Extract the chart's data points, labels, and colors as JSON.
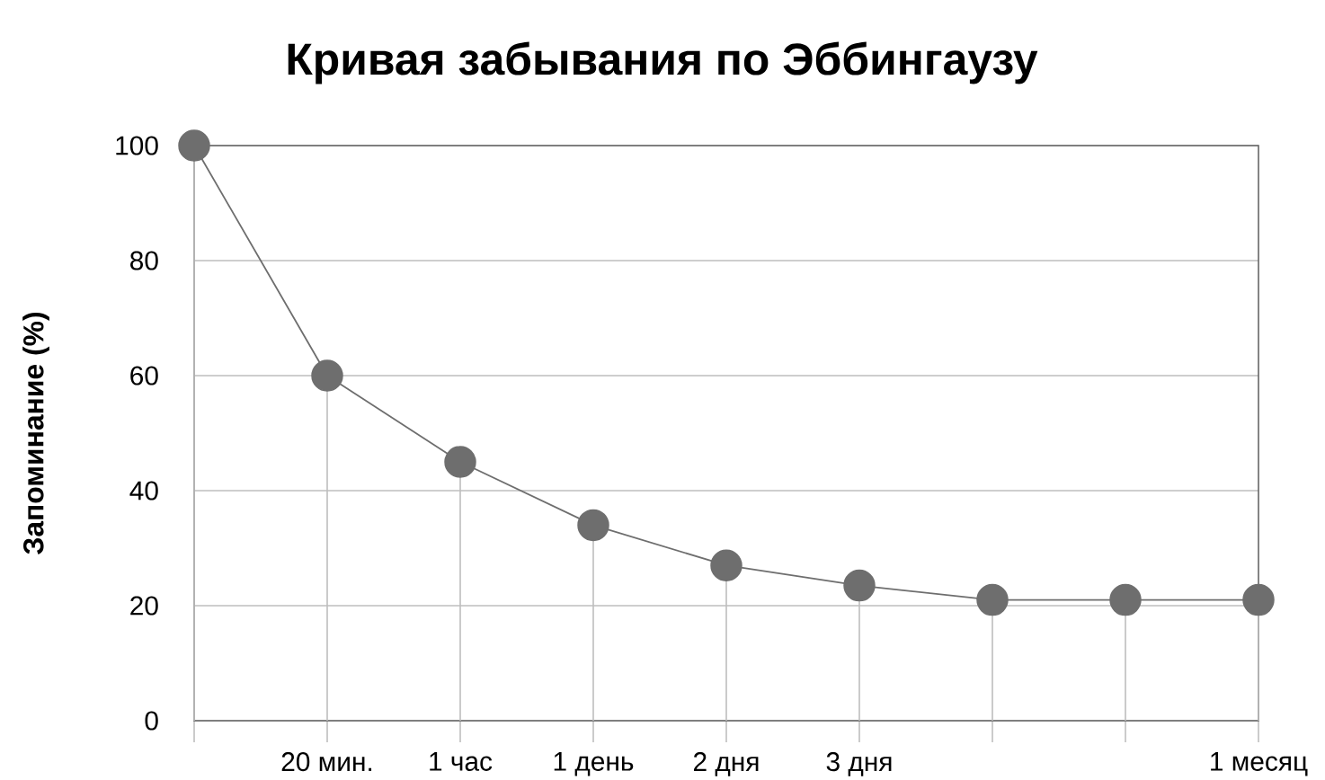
{
  "chart_data": {
    "type": "line",
    "title": "Кривая забывания по Эббингаузу",
    "ylabel": "Запоминание (%)",
    "categories": [
      null,
      "20 мин.",
      "1 час",
      "1 день",
      "2 дня",
      "3 дня",
      null,
      null,
      "1 месяц"
    ],
    "series": [
      {
        "type": "lollipop",
        "marker": "circle",
        "color": "#6e6e6e",
        "values": [
          100,
          60,
          45,
          34,
          27,
          23.5,
          21,
          21,
          21
        ]
      },
      {
        "marker": "none",
        "color": "#6e6e6e",
        "values": [
          100,
          60,
          45,
          34,
          27,
          23.5,
          21,
          21,
          21
        ]
      }
    ],
    "ylim": [
      0,
      100
    ],
    "yticks": [
      0,
      20,
      40,
      60,
      80,
      100
    ],
    "grid": "y",
    "line_style": "solid"
  }
}
